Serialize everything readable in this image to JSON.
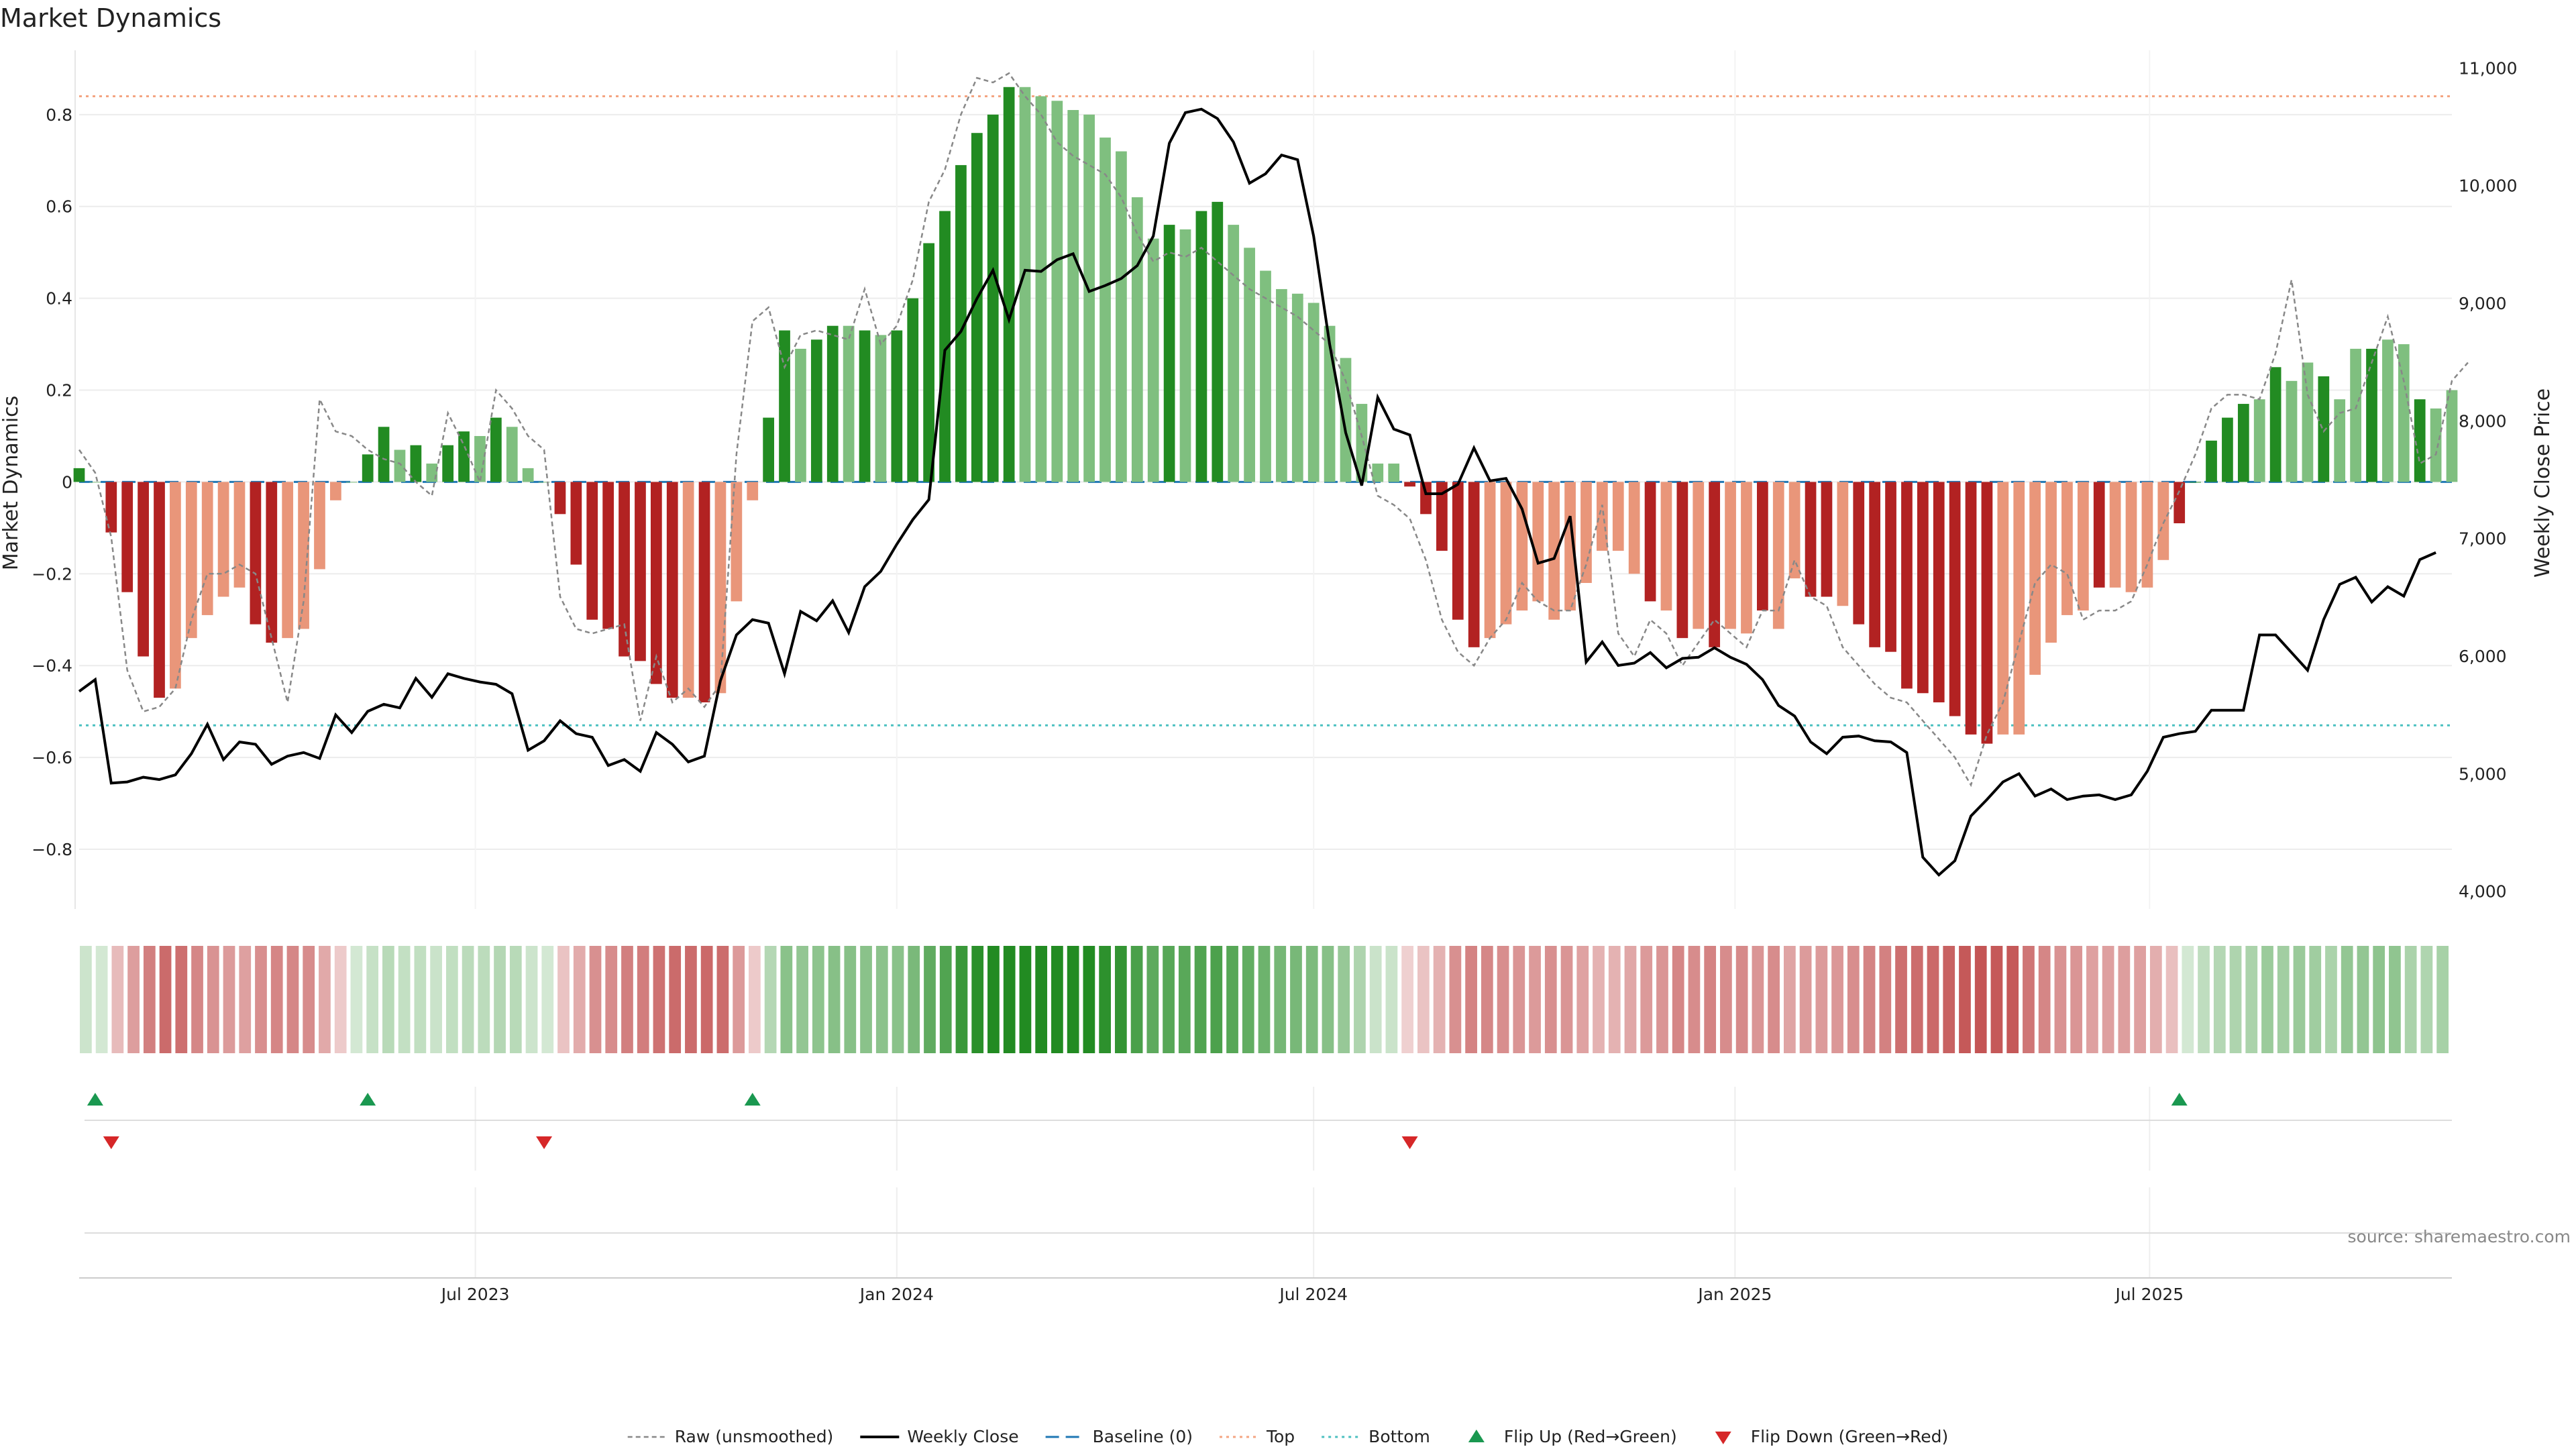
{
  "chart_data": {
    "type": "bar",
    "title": "Market Dynamics",
    "ylabel_left": "Market Dynamics",
    "ylabel_right": "Weekly Close Price",
    "ylim_left": [
      -0.93,
      0.94
    ],
    "ylim_right": [
      3850,
      11150
    ],
    "yticks_left": [
      {
        "v": 0.8,
        "label": "0.8"
      },
      {
        "v": 0.6,
        "label": "0.6"
      },
      {
        "v": 0.4,
        "label": "0.4"
      },
      {
        "v": 0.2,
        "label": "0.2"
      },
      {
        "v": 0,
        "label": "0"
      },
      {
        "v": -0.2,
        "label": "−0.2"
      },
      {
        "v": -0.4,
        "label": "−0.4"
      },
      {
        "v": -0.6,
        "label": "−0.6"
      },
      {
        "v": -0.8,
        "label": "−0.8"
      }
    ],
    "yticks_right": [
      {
        "v": 11000,
        "label": "11,000"
      },
      {
        "v": 10000,
        "label": "10,000"
      },
      {
        "v": 9000,
        "label": "9,000"
      },
      {
        "v": 8000,
        "label": "8,000"
      },
      {
        "v": 7000,
        "label": "7,000"
      },
      {
        "v": 6000,
        "label": "6,000"
      },
      {
        "v": 5000,
        "label": "5,000"
      },
      {
        "v": 4000,
        "label": "4,000"
      }
    ],
    "x_start": "2023-01-09",
    "x_end": "2025-10-20",
    "x_step_days": 7,
    "xticks": [
      {
        "date": "2023-07-01",
        "label": "Jul 2023"
      },
      {
        "date": "2024-01-01",
        "label": "Jan 2024"
      },
      {
        "date": "2024-07-01",
        "label": "Jul 2024"
      },
      {
        "date": "2025-01-01",
        "label": "Jan 2025"
      },
      {
        "date": "2025-07-01",
        "label": "Jul 2025"
      }
    ],
    "top_line": 0.84,
    "bottom_line": -0.53,
    "baseline": 0,
    "grid": true,
    "colors": {
      "strong_up": "#228b22",
      "weak_up": "#7fbf7f",
      "strong_down": "#b22222",
      "weak_down": "#e9967a",
      "raw": "#888888",
      "close": "#000000",
      "baseline": "#1f77b4",
      "top": "#f4a582",
      "bottom": "#4bc0c0",
      "flip_up": "#1a9850",
      "flip_down": "#d62728"
    },
    "series": [
      {
        "name": "Market Dynamics",
        "values": [
          0.03,
          0.0,
          -0.11,
          -0.24,
          -0.38,
          -0.47,
          -0.45,
          -0.34,
          -0.29,
          -0.25,
          -0.23,
          -0.31,
          -0.35,
          -0.34,
          -0.32,
          -0.19,
          -0.04,
          0.0,
          0.06,
          0.12,
          0.07,
          0.08,
          0.04,
          0.08,
          0.11,
          0.1,
          0.14,
          0.12,
          0.03,
          0.0,
          -0.07,
          -0.18,
          -0.3,
          -0.32,
          -0.38,
          -0.39,
          -0.44,
          -0.47,
          -0.47,
          -0.48,
          -0.46,
          -0.26,
          -0.04,
          0.14,
          0.33,
          0.29,
          0.31,
          0.34,
          0.34,
          0.33,
          0.32,
          0.33,
          0.4,
          0.52,
          0.59,
          0.69,
          0.76,
          0.8,
          0.86,
          0.86,
          0.84,
          0.83,
          0.81,
          0.8,
          0.75,
          0.72,
          0.62,
          0.53,
          0.56,
          0.55,
          0.59,
          0.61,
          0.56,
          0.51,
          0.46,
          0.42,
          0.41,
          0.39,
          0.34,
          0.27,
          0.17,
          0.04,
          0.04,
          -0.01,
          -0.07,
          -0.15,
          -0.3,
          -0.36,
          -0.34,
          -0.31,
          -0.28,
          -0.26,
          -0.3,
          -0.28,
          -0.22,
          -0.15,
          -0.15,
          -0.2,
          -0.26,
          -0.28,
          -0.34,
          -0.32,
          -0.36,
          -0.32,
          -0.33,
          -0.28,
          -0.32,
          -0.21,
          -0.25,
          -0.25,
          -0.27,
          -0.31,
          -0.36,
          -0.37,
          -0.45,
          -0.46,
          -0.48,
          -0.51,
          -0.55,
          -0.57,
          -0.55,
          -0.55,
          -0.42,
          -0.35,
          -0.29,
          -0.28,
          -0.23,
          -0.23,
          -0.24,
          -0.23,
          -0.17,
          -0.09,
          0.0,
          0.09,
          0.14,
          0.17,
          0.18,
          0.25,
          0.22,
          0.26,
          0.23,
          0.18,
          0.29,
          0.29,
          0.31,
          0.3,
          0.18,
          0.16,
          0.2
        ],
        "strength": [
          "s",
          "w",
          "s",
          "s",
          "s",
          "s",
          "w",
          "w",
          "w",
          "w",
          "w",
          "s",
          "s",
          "w",
          "w",
          "w",
          "w",
          "w",
          "s",
          "s",
          "w",
          "s",
          "w",
          "s",
          "s",
          "w",
          "s",
          "w",
          "w",
          "w",
          "s",
          "s",
          "s",
          "s",
          "s",
          "s",
          "s",
          "s",
          "w",
          "s",
          "w",
          "w",
          "w",
          "s",
          "s",
          "w",
          "s",
          "s",
          "w",
          "s",
          "w",
          "s",
          "s",
          "s",
          "s",
          "s",
          "s",
          "s",
          "s",
          "w",
          "w",
          "w",
          "w",
          "w",
          "w",
          "w",
          "w",
          "w",
          "s",
          "w",
          "s",
          "s",
          "w",
          "w",
          "w",
          "w",
          "w",
          "w",
          "w",
          "w",
          "w",
          "w",
          "w",
          "s",
          "s",
          "s",
          "s",
          "s",
          "w",
          "w",
          "w",
          "w",
          "w",
          "w",
          "w",
          "w",
          "w",
          "w",
          "s",
          "w",
          "s",
          "w",
          "s",
          "w",
          "w",
          "s",
          "w",
          "w",
          "s",
          "s",
          "w",
          "s",
          "s",
          "s",
          "s",
          "s",
          "s",
          "s",
          "s",
          "s",
          "w",
          "w",
          "w",
          "w",
          "w",
          "w",
          "s",
          "w",
          "w",
          "w",
          "w",
          "s",
          "s",
          "s",
          "s",
          "s",
          "w",
          "s",
          "w",
          "w",
          "s",
          "w",
          "w",
          "s",
          "w",
          "w",
          "s"
        ]
      },
      {
        "name": "Raw (unsmoothed)",
        "values": [
          0.07,
          0.02,
          -0.12,
          -0.41,
          -0.5,
          -0.49,
          -0.45,
          -0.3,
          -0.2,
          -0.2,
          -0.18,
          -0.2,
          -0.34,
          -0.48,
          -0.26,
          0.18,
          0.11,
          0.1,
          0.07,
          0.05,
          0.04,
          0.0,
          -0.03,
          0.15,
          0.08,
          0.0,
          0.2,
          0.16,
          0.1,
          0.07,
          -0.25,
          -0.32,
          -0.33,
          -0.32,
          -0.31,
          -0.52,
          -0.38,
          -0.48,
          -0.45,
          -0.49,
          -0.44,
          0.06,
          0.35,
          0.38,
          0.25,
          0.32,
          0.33,
          0.32,
          0.31,
          0.42,
          0.3,
          0.34,
          0.44,
          0.61,
          0.68,
          0.8,
          0.88,
          0.87,
          0.89,
          0.84,
          0.8,
          0.74,
          0.71,
          0.69,
          0.67,
          0.62,
          0.54,
          0.48,
          0.5,
          0.49,
          0.51,
          0.48,
          0.45,
          0.42,
          0.4,
          0.38,
          0.36,
          0.33,
          0.3,
          0.22,
          0.1,
          -0.03,
          -0.05,
          -0.08,
          -0.17,
          -0.3,
          -0.37,
          -0.4,
          -0.34,
          -0.3,
          -0.22,
          -0.26,
          -0.28,
          -0.28,
          -0.18,
          -0.05,
          -0.33,
          -0.38,
          -0.3,
          -0.33,
          -0.4,
          -0.35,
          -0.3,
          -0.33,
          -0.36,
          -0.28,
          -0.28,
          -0.17,
          -0.25,
          -0.27,
          -0.36,
          -0.4,
          -0.44,
          -0.47,
          -0.48,
          -0.52,
          -0.56,
          -0.6,
          -0.66,
          -0.55,
          -0.48,
          -0.35,
          -0.22,
          -0.18,
          -0.2,
          -0.3,
          -0.28,
          -0.28,
          -0.26,
          -0.18,
          -0.09,
          -0.02,
          0.06,
          0.16,
          0.19,
          0.19,
          0.18,
          0.28,
          0.44,
          0.19,
          0.11,
          0.15,
          0.16,
          0.26,
          0.36,
          0.22,
          0.04,
          0.06,
          0.22,
          0.26
        ]
      },
      {
        "name": "Weekly Close",
        "values": [
          5700,
          5800,
          4920,
          4930,
          4970,
          4950,
          4990,
          5170,
          5420,
          5120,
          5270,
          5250,
          5080,
          5150,
          5180,
          5130,
          5500,
          5350,
          5530,
          5590,
          5560,
          5810,
          5650,
          5850,
          5810,
          5780,
          5760,
          5680,
          5200,
          5280,
          5450,
          5340,
          5310,
          5070,
          5120,
          5020,
          5350,
          5250,
          5100,
          5150,
          5790,
          6180,
          6310,
          6280,
          5850,
          6380,
          6300,
          6470,
          6200,
          6590,
          6720,
          6950,
          7160,
          7330,
          8600,
          8760,
          9040,
          9280,
          8860,
          9280,
          9270,
          9370,
          9420,
          9100,
          9150,
          9210,
          9320,
          9570,
          10360,
          10620,
          10650,
          10570,
          10370,
          10020,
          10100,
          10260,
          10220,
          9570,
          8650,
          7900,
          7450,
          8200,
          7930,
          7880,
          7380,
          7380,
          7460,
          7770,
          7490,
          7510,
          7250,
          6790,
          6830,
          7190,
          5950,
          6120,
          5920,
          5940,
          6030,
          5900,
          5980,
          5990,
          6070,
          5990,
          5930,
          5800,
          5580,
          5490,
          5270,
          5170,
          5310,
          5320,
          5280,
          5270,
          5180,
          4290,
          4140,
          4260,
          4640,
          4780,
          4930,
          5000,
          4810,
          4870,
          4780,
          4810,
          4820,
          4780,
          4820,
          5020,
          5310,
          5340,
          5360,
          5540,
          5540,
          5540,
          6180,
          6180,
          6030,
          5880,
          6310,
          6610,
          6670,
          6460,
          6590,
          6510,
          6820,
          6880
        ]
      }
    ],
    "flip_up_idx": [
      1,
      18,
      42,
      131
    ],
    "flip_down_idx": [
      2,
      29,
      83
    ],
    "legend": [
      {
        "key": "raw",
        "label": "Raw (unsmoothed)"
      },
      {
        "key": "close",
        "label": "Weekly Close"
      },
      {
        "key": "baseline",
        "label": "Baseline (0)"
      },
      {
        "key": "top",
        "label": "Top"
      },
      {
        "key": "bottom",
        "label": "Bottom"
      },
      {
        "key": "flip_up",
        "label": "Flip Up (Red→Green)"
      },
      {
        "key": "flip_down",
        "label": "Flip Down (Green→Red)"
      }
    ],
    "legend_position": "bottom-center",
    "source": "source: sharemaestro.com"
  }
}
